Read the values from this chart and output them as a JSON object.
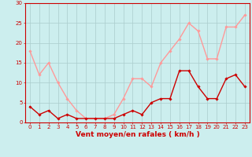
{
  "x": [
    0,
    1,
    2,
    3,
    4,
    5,
    6,
    7,
    8,
    9,
    10,
    11,
    12,
    13,
    14,
    15,
    16,
    17,
    18,
    19,
    20,
    21,
    22,
    23
  ],
  "avg_wind": [
    4,
    2,
    3,
    1,
    2,
    1,
    1,
    1,
    1,
    1,
    2,
    3,
    2,
    5,
    6,
    6,
    13,
    13,
    9,
    6,
    6,
    11,
    12,
    9
  ],
  "gust_wind": [
    18,
    12,
    15,
    10,
    6,
    3,
    1,
    1,
    1,
    2,
    6,
    11,
    11,
    9,
    15,
    18,
    21,
    25,
    23,
    16,
    16,
    24,
    24,
    27
  ],
  "avg_color": "#cc0000",
  "gust_color": "#ff9999",
  "bg_color": "#cceeee",
  "grid_color": "#aacccc",
  "xlabel": "Vent moyen/en rafales ( km/h )",
  "ylim": [
    0,
    30
  ],
  "xlim": [
    -0.5,
    23.5
  ],
  "yticks": [
    0,
    5,
    10,
    15,
    20,
    25,
    30
  ],
  "xticks": [
    0,
    1,
    2,
    3,
    4,
    5,
    6,
    7,
    8,
    9,
    10,
    11,
    12,
    13,
    14,
    15,
    16,
    17,
    18,
    19,
    20,
    21,
    22,
    23
  ],
  "marker": "D",
  "markersize": 1.8,
  "linewidth": 1.0,
  "xlabel_fontsize": 6.5,
  "tick_fontsize": 5.0
}
